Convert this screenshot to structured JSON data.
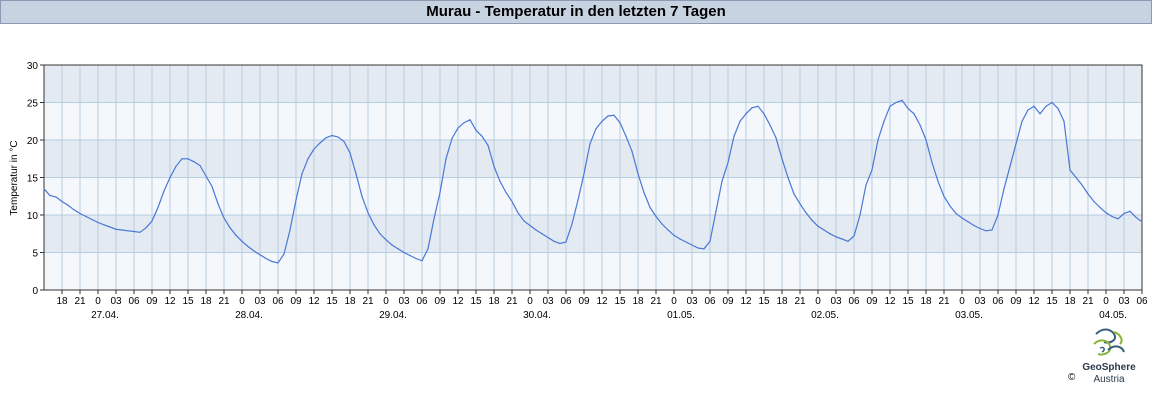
{
  "title": "Murau - Temperatur in den letzten 7 Tagen",
  "copyright": "©",
  "logo": {
    "name": "GeoSphere",
    "sub": "Austria"
  },
  "colors": {
    "line": "#4a78d6",
    "band_dark": "#e4eaf2",
    "band_light": "#f4f7fb",
    "grid": "#b7cde0",
    "title_bg": "#c8d3e2"
  },
  "chart_data": {
    "type": "line",
    "ylabel": "Temperatur in °C",
    "xlabel": "",
    "ylim": [
      0,
      30
    ],
    "yticks": [
      0,
      5,
      10,
      15,
      20,
      25,
      30
    ],
    "grid": true,
    "start": "26.04. 15:00",
    "end": "04.05. 06:00",
    "x_tick_labels": [
      "18",
      "21",
      "0",
      "03",
      "06",
      "09",
      "12",
      "15",
      "18",
      "21",
      "0",
      "03",
      "06",
      "09",
      "12",
      "15",
      "18",
      "21",
      "0",
      "03",
      "06",
      "09",
      "12",
      "15",
      "18",
      "21",
      "0",
      "03",
      "06",
      "09",
      "12",
      "15",
      "18",
      "21",
      "0",
      "03",
      "06",
      "09",
      "12",
      "15",
      "18",
      "21",
      "0",
      "03",
      "06",
      "09",
      "12",
      "15",
      "18",
      "21",
      "0",
      "03",
      "06",
      "09",
      "12",
      "15",
      "18",
      "21",
      "0",
      "03",
      "06"
    ],
    "date_labels": [
      "27.04.",
      "28.04.",
      "29.04.",
      "30.04.",
      "01.05.",
      "02.05.",
      "03.05.",
      "04.05."
    ],
    "series": [
      {
        "values": [
          [
            "26.04. 15:00",
            13.5
          ],
          [
            "26.04. 16:00",
            12.6
          ],
          [
            "26.04. 17:00",
            12.4
          ],
          [
            "26.04. 18:00",
            11.8
          ],
          [
            "26.04. 19:00",
            11.3
          ],
          [
            "26.04. 20:00",
            10.7
          ],
          [
            "26.04. 21:00",
            10.2
          ],
          [
            "26.04. 22:00",
            9.8
          ],
          [
            "26.04. 23:00",
            9.4
          ],
          [
            "27.04. 00:00",
            9.0
          ],
          [
            "27.04. 01:00",
            8.7
          ],
          [
            "27.04. 02:00",
            8.4
          ],
          [
            "27.04. 03:00",
            8.1
          ],
          [
            "27.04. 04:00",
            8.0
          ],
          [
            "27.04. 05:00",
            7.9
          ],
          [
            "27.04. 06:00",
            7.8
          ],
          [
            "27.04. 07:00",
            7.7
          ],
          [
            "27.04. 08:00",
            8.3
          ],
          [
            "27.04. 09:00",
            9.2
          ],
          [
            "27.04. 10:00",
            11.0
          ],
          [
            "27.04. 11:00",
            13.2
          ],
          [
            "27.04. 12:00",
            15.0
          ],
          [
            "27.04. 13:00",
            16.5
          ],
          [
            "27.04. 14:00",
            17.5
          ],
          [
            "27.04. 15:00",
            17.5
          ],
          [
            "27.04. 16:00",
            17.1
          ],
          [
            "27.04. 17:00",
            16.6
          ],
          [
            "27.04. 18:00",
            15.2
          ],
          [
            "27.04. 19:00",
            13.8
          ],
          [
            "27.04. 20:00",
            11.5
          ],
          [
            "27.04. 21:00",
            9.6
          ],
          [
            "27.04. 22:00",
            8.3
          ],
          [
            "27.04. 23:00",
            7.3
          ],
          [
            "28.04. 00:00",
            6.5
          ],
          [
            "28.04. 01:00",
            5.8
          ],
          [
            "28.04. 02:00",
            5.2
          ],
          [
            "28.04. 03:00",
            4.7
          ],
          [
            "28.04. 04:00",
            4.2
          ],
          [
            "28.04. 05:00",
            3.8
          ],
          [
            "28.04. 06:00",
            3.6
          ],
          [
            "28.04. 07:00",
            4.8
          ],
          [
            "28.04. 08:00",
            8.0
          ],
          [
            "28.04. 09:00",
            12.0
          ],
          [
            "28.04. 10:00",
            15.5
          ],
          [
            "28.04. 11:00",
            17.5
          ],
          [
            "28.04. 12:00",
            18.8
          ],
          [
            "28.04. 13:00",
            19.6
          ],
          [
            "28.04. 14:00",
            20.3
          ],
          [
            "28.04. 15:00",
            20.6
          ],
          [
            "28.04. 16:00",
            20.4
          ],
          [
            "28.04. 17:00",
            19.8
          ],
          [
            "28.04. 18:00",
            18.3
          ],
          [
            "28.04. 19:00",
            15.5
          ],
          [
            "28.04. 20:00",
            12.5
          ],
          [
            "28.04. 21:00",
            10.3
          ],
          [
            "28.04. 22:00",
            8.7
          ],
          [
            "28.04. 23:00",
            7.5
          ],
          [
            "29.04. 00:00",
            6.7
          ],
          [
            "29.04. 01:00",
            6.0
          ],
          [
            "29.04. 02:00",
            5.5
          ],
          [
            "29.04. 03:00",
            5.0
          ],
          [
            "29.04. 04:00",
            4.6
          ],
          [
            "29.04. 05:00",
            4.2
          ],
          [
            "29.04. 06:00",
            3.9
          ],
          [
            "29.04. 07:00",
            5.5
          ],
          [
            "29.04. 08:00",
            9.5
          ],
          [
            "29.04. 09:00",
            13.0
          ],
          [
            "29.04. 10:00",
            17.5
          ],
          [
            "29.04. 11:00",
            20.2
          ],
          [
            "29.04. 12:00",
            21.6
          ],
          [
            "29.04. 13:00",
            22.3
          ],
          [
            "29.04. 14:00",
            22.7
          ],
          [
            "29.04. 15:00",
            21.3
          ],
          [
            "29.04. 16:00",
            20.5
          ],
          [
            "29.04. 17:00",
            19.3
          ],
          [
            "29.04. 18:00",
            16.5
          ],
          [
            "29.04. 19:00",
            14.5
          ],
          [
            "29.04. 20:00",
            13.0
          ],
          [
            "29.04. 21:00",
            11.8
          ],
          [
            "29.04. 22:00",
            10.3
          ],
          [
            "29.04. 23:00",
            9.2
          ],
          [
            "30.04. 00:00",
            8.6
          ],
          [
            "30.04. 01:00",
            8.0
          ],
          [
            "30.04. 02:00",
            7.5
          ],
          [
            "30.04. 03:00",
            7.0
          ],
          [
            "30.04. 04:00",
            6.5
          ],
          [
            "30.04. 05:00",
            6.2
          ],
          [
            "30.04. 06:00",
            6.4
          ],
          [
            "30.04. 07:00",
            8.8
          ],
          [
            "30.04. 08:00",
            12.0
          ],
          [
            "30.04. 09:00",
            15.5
          ],
          [
            "30.04. 10:00",
            19.5
          ],
          [
            "30.04. 11:00",
            21.5
          ],
          [
            "30.04. 12:00",
            22.5
          ],
          [
            "30.04. 13:00",
            23.2
          ],
          [
            "30.04. 14:00",
            23.3
          ],
          [
            "30.04. 15:00",
            22.3
          ],
          [
            "30.04. 16:00",
            20.5
          ],
          [
            "30.04. 17:00",
            18.5
          ],
          [
            "30.04. 18:00",
            15.5
          ],
          [
            "30.04. 19:00",
            13.0
          ],
          [
            "30.04. 20:00",
            11.0
          ],
          [
            "30.04. 21:00",
            9.8
          ],
          [
            "30.04. 22:00",
            8.8
          ],
          [
            "30.04. 23:00",
            8.0
          ],
          [
            "01.05. 00:00",
            7.3
          ],
          [
            "01.05. 01:00",
            6.8
          ],
          [
            "01.05. 02:00",
            6.4
          ],
          [
            "01.05. 03:00",
            6.0
          ],
          [
            "01.05. 04:00",
            5.6
          ],
          [
            "01.05. 05:00",
            5.5
          ],
          [
            "01.05. 06:00",
            6.5
          ],
          [
            "01.05. 07:00",
            10.5
          ],
          [
            "01.05. 08:00",
            14.5
          ],
          [
            "01.05. 09:00",
            17.0
          ],
          [
            "01.05. 10:00",
            20.5
          ],
          [
            "01.05. 11:00",
            22.5
          ],
          [
            "01.05. 12:00",
            23.5
          ],
          [
            "01.05. 13:00",
            24.3
          ],
          [
            "01.05. 14:00",
            24.5
          ],
          [
            "01.05. 15:00",
            23.5
          ],
          [
            "01.05. 16:00",
            22.0
          ],
          [
            "01.05. 17:00",
            20.3
          ],
          [
            "01.05. 18:00",
            17.5
          ],
          [
            "01.05. 19:00",
            15.0
          ],
          [
            "01.05. 20:00",
            12.8
          ],
          [
            "01.05. 21:00",
            11.5
          ],
          [
            "01.05. 22:00",
            10.3
          ],
          [
            "01.05. 23:00",
            9.3
          ],
          [
            "02.05. 00:00",
            8.5
          ],
          [
            "02.05. 01:00",
            8.0
          ],
          [
            "02.05. 02:00",
            7.5
          ],
          [
            "02.05. 03:00",
            7.1
          ],
          [
            "02.05. 04:00",
            6.8
          ],
          [
            "02.05. 05:00",
            6.5
          ],
          [
            "02.05. 06:00",
            7.2
          ],
          [
            "02.05. 07:00",
            10.0
          ],
          [
            "02.05. 08:00",
            14.0
          ],
          [
            "02.05. 09:00",
            16.0
          ],
          [
            "02.05. 10:00",
            20.0
          ],
          [
            "02.05. 11:00",
            22.5
          ],
          [
            "02.05. 12:00",
            24.5
          ],
          [
            "02.05. 13:00",
            25.0
          ],
          [
            "02.05. 14:00",
            25.3
          ],
          [
            "02.05. 15:00",
            24.2
          ],
          [
            "02.05. 16:00",
            23.5
          ],
          [
            "02.05. 17:00",
            22.0
          ],
          [
            "02.05. 18:00",
            20.0
          ],
          [
            "02.05. 19:00",
            17.0
          ],
          [
            "02.05. 20:00",
            14.5
          ],
          [
            "02.05. 21:00",
            12.5
          ],
          [
            "02.05. 22:00",
            11.2
          ],
          [
            "02.05. 23:00",
            10.2
          ],
          [
            "03.05. 00:00",
            9.6
          ],
          [
            "03.05. 01:00",
            9.1
          ],
          [
            "03.05. 02:00",
            8.6
          ],
          [
            "03.05. 03:00",
            8.2
          ],
          [
            "03.05. 04:00",
            7.9
          ],
          [
            "03.05. 05:00",
            8.0
          ],
          [
            "03.05. 06:00",
            10.0
          ],
          [
            "03.05. 07:00",
            13.5
          ],
          [
            "03.05. 08:00",
            16.5
          ],
          [
            "03.05. 09:00",
            19.5
          ],
          [
            "03.05. 10:00",
            22.5
          ],
          [
            "03.05. 11:00",
            24.0
          ],
          [
            "03.05. 12:00",
            24.5
          ],
          [
            "03.05. 13:00",
            23.5
          ],
          [
            "03.05. 14:00",
            24.5
          ],
          [
            "03.05. 15:00",
            25.0
          ],
          [
            "03.05. 16:00",
            24.2
          ],
          [
            "03.05. 17:00",
            22.5
          ],
          [
            "03.05. 18:00",
            16.0
          ],
          [
            "03.05. 19:00",
            15.0
          ],
          [
            "03.05. 20:00",
            14.0
          ],
          [
            "03.05. 21:00",
            12.8
          ],
          [
            "03.05. 22:00",
            11.8
          ],
          [
            "03.05. 23:00",
            11.0
          ],
          [
            "04.05. 00:00",
            10.3
          ],
          [
            "04.05. 01:00",
            9.8
          ],
          [
            "04.05. 02:00",
            9.5
          ],
          [
            "04.05. 03:00",
            10.2
          ],
          [
            "04.05. 04:00",
            10.5
          ],
          [
            "04.05. 05:00",
            9.7
          ],
          [
            "04.05. 06:00",
            9.1
          ]
        ]
      }
    ]
  }
}
